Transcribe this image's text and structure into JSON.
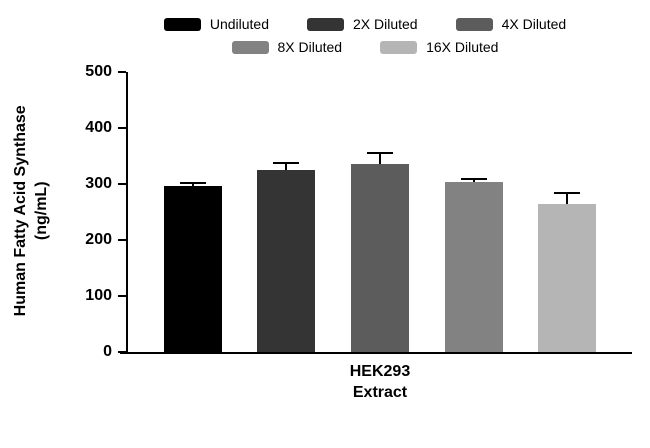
{
  "chart_data": {
    "type": "bar",
    "title": "",
    "ylabel": "Human Fatty Acid Synthase\n(ng/mL)",
    "xlabel": "HEK293\nExtract",
    "ylim": [
      0,
      500
    ],
    "yticks": [
      0,
      100,
      200,
      300,
      400,
      500
    ],
    "categories": [
      "Undiluted",
      "2X Diluted",
      "4X Diluted",
      "8X Diluted",
      "16X Diluted"
    ],
    "values": [
      296,
      325,
      336,
      303,
      264
    ],
    "errors": [
      4,
      10,
      17,
      4,
      18
    ],
    "colors": [
      "#000000",
      "#343434",
      "#5c5c5c",
      "#828282",
      "#b5b5b5"
    ],
    "legend_rows": [
      3,
      2
    ],
    "legend_position": "top",
    "grid": false,
    "error_color": "#000000"
  }
}
